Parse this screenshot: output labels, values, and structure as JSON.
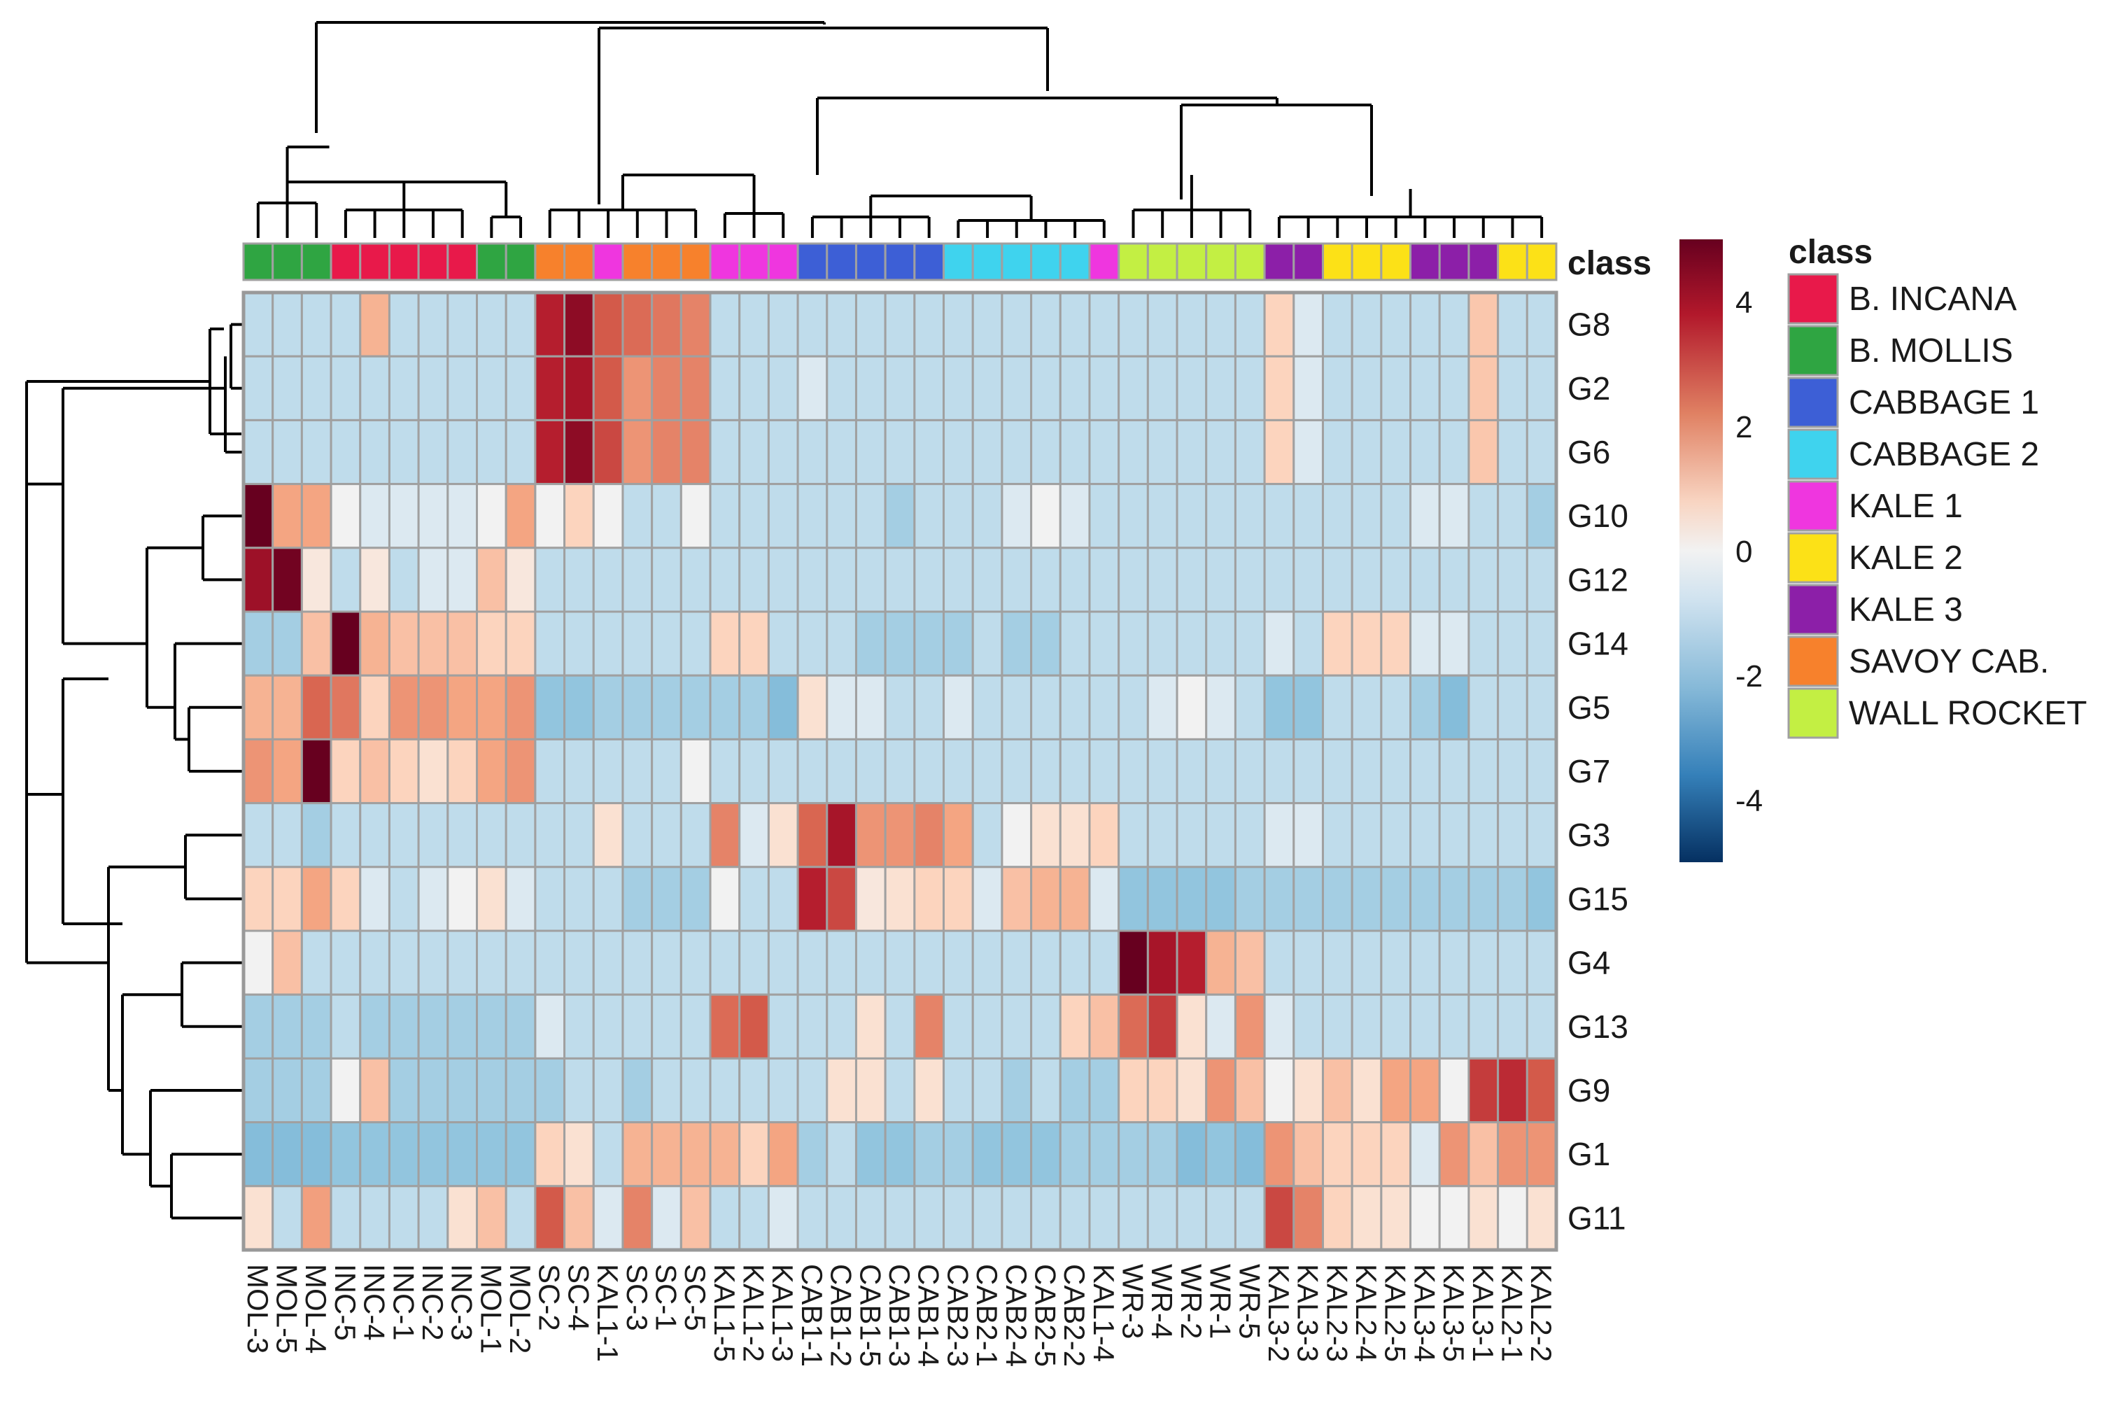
{
  "chart_data": {
    "type": "heatmap",
    "row_dendrogram": true,
    "column_dendrogram": true,
    "rows": [
      "G8",
      "G2",
      "G6",
      "G10",
      "G12",
      "G14",
      "G5",
      "G7",
      "G3",
      "G15",
      "G4",
      "G13",
      "G9",
      "G1",
      "G11"
    ],
    "columns": [
      "MOL-3",
      "MOL-5",
      "MOL-4",
      "INC-5",
      "INC-4",
      "INC-1",
      "INC-2",
      "INC-3",
      "MOL-1",
      "MOL-2",
      "SC-2",
      "SC-4",
      "KAL1-1",
      "SC-3",
      "SC-1",
      "SC-5",
      "KAL1-5",
      "KAL1-2",
      "KAL1-3",
      "CAB1-1",
      "CAB1-2",
      "CAB1-5",
      "CAB1-3",
      "CAB1-4",
      "CAB2-3",
      "CAB2-1",
      "CAB2-4",
      "CAB2-5",
      "CAB2-2",
      "KAL1-4",
      "WR-3",
      "WR-4",
      "WR-2",
      "WR-1",
      "WR-5",
      "KAL3-2",
      "KAL3-3",
      "KAL2-3",
      "KAL2-4",
      "KAL2-5",
      "KAL3-4",
      "KAL3-5",
      "KAL3-1",
      "KAL2-1",
      "KAL2-2"
    ],
    "column_classes": [
      "B. MOLLIS",
      "B. MOLLIS",
      "B. MOLLIS",
      "B. INCANA",
      "B. INCANA",
      "B. INCANA",
      "B. INCANA",
      "B. INCANA",
      "B. MOLLIS",
      "B. MOLLIS",
      "SAVOY CAB.",
      "SAVOY CAB.",
      "KALE 1",
      "SAVOY CAB.",
      "SAVOY CAB.",
      "SAVOY CAB.",
      "KALE 1",
      "KALE 1",
      "KALE 1",
      "CABBAGE 1",
      "CABBAGE 1",
      "CABBAGE 1",
      "CABBAGE 1",
      "CABBAGE 1",
      "CABBAGE 2",
      "CABBAGE 2",
      "CABBAGE 2",
      "CABBAGE 2",
      "CABBAGE 2",
      "KALE 1",
      "WALL ROCKET",
      "WALL ROCKET",
      "WALL ROCKET",
      "WALL ROCKET",
      "WALL ROCKET",
      "KALE 3",
      "KALE 3",
      "KALE 2",
      "KALE 2",
      "KALE 2",
      "KALE 3",
      "KALE 3",
      "KALE 3",
      "KALE 2",
      "KALE 2"
    ],
    "values": [
      [
        -0.5,
        -0.5,
        -0.5,
        -0.5,
        1,
        -0.5,
        -0.5,
        -0.5,
        -0.5,
        -0.5,
        3.5,
        4.3,
        2.5,
        2.2,
        2,
        1.8,
        -0.5,
        -0.5,
        -0.5,
        -0.5,
        -0.5,
        -0.5,
        -0.5,
        -0.5,
        -0.5,
        -0.5,
        -0.5,
        -0.5,
        -0.5,
        -0.5,
        -0.5,
        -0.5,
        -0.5,
        -0.5,
        -0.5,
        0.5,
        -0.2,
        -0.5,
        -0.5,
        -0.5,
        -0.5,
        -0.5,
        0.7,
        -0.5,
        -0.5
      ],
      [
        -0.5,
        -0.5,
        -0.5,
        -0.5,
        -0.5,
        -0.5,
        -0.5,
        -0.5,
        -0.5,
        -0.5,
        3.5,
        3.8,
        2.5,
        1.5,
        1.8,
        1.8,
        -0.5,
        -0.5,
        -0.5,
        -0.2,
        -0.5,
        -0.5,
        -0.5,
        -0.5,
        -0.5,
        -0.5,
        -0.5,
        -0.5,
        -0.5,
        -0.5,
        -0.5,
        -0.5,
        -0.5,
        -0.5,
        -0.5,
        0.5,
        -0.2,
        -0.5,
        -0.5,
        -0.5,
        -0.5,
        -0.5,
        0.7,
        -0.5,
        -0.5
      ],
      [
        -0.5,
        -0.5,
        -0.5,
        -0.5,
        -0.5,
        -0.5,
        -0.5,
        -0.5,
        -0.5,
        -0.5,
        3.5,
        4.3,
        2.8,
        1.5,
        1.8,
        1.8,
        -0.5,
        -0.5,
        -0.5,
        -0.5,
        -0.5,
        -0.5,
        -0.5,
        -0.5,
        -0.5,
        -0.5,
        -0.5,
        -0.5,
        -0.5,
        -0.5,
        -0.5,
        -0.5,
        -0.5,
        -0.5,
        -0.5,
        0.5,
        -0.2,
        -0.5,
        -0.5,
        -0.5,
        -0.5,
        -0.5,
        0.7,
        -0.5,
        -0.5
      ],
      [
        5,
        1.2,
        1.2,
        0,
        -0.2,
        -0.2,
        -0.2,
        -0.2,
        0,
        1.2,
        0,
        0.5,
        0,
        -0.5,
        -0.5,
        0,
        -0.5,
        -0.5,
        -0.5,
        -0.5,
        -0.5,
        -0.5,
        -0.8,
        -0.5,
        -0.5,
        -0.5,
        -0.2,
        0,
        -0.2,
        -0.5,
        -0.5,
        -0.5,
        -0.5,
        -0.5,
        -0.5,
        -0.5,
        -0.5,
        -0.5,
        -0.5,
        -0.5,
        -0.2,
        -0.2,
        -0.5,
        -0.5,
        -0.8
      ],
      [
        4,
        4.8,
        0.2,
        -0.5,
        0.2,
        -0.5,
        -0.2,
        -0.2,
        0.8,
        0.2,
        -0.5,
        -0.5,
        -0.5,
        -0.5,
        -0.5,
        -0.5,
        -0.5,
        -0.5,
        -0.5,
        -0.5,
        -0.5,
        -0.5,
        -0.5,
        -0.5,
        -0.5,
        -0.5,
        -0.5,
        -0.5,
        -0.5,
        -0.5,
        -0.5,
        -0.5,
        -0.5,
        -0.5,
        -0.5,
        -0.5,
        -0.5,
        -0.5,
        -0.5,
        -0.5,
        -0.5,
        -0.5,
        -0.5,
        -0.5,
        -0.5
      ],
      [
        -0.8,
        -0.8,
        0.8,
        5,
        1,
        0.8,
        0.8,
        0.8,
        0.5,
        0.5,
        -0.5,
        -0.5,
        -0.5,
        -0.5,
        -0.5,
        -0.5,
        0.5,
        0.5,
        -0.5,
        -0.5,
        -0.5,
        -0.8,
        -0.8,
        -0.8,
        -0.8,
        -0.5,
        -0.8,
        -0.8,
        -0.5,
        -0.5,
        -0.5,
        -0.5,
        -0.5,
        -0.5,
        -0.5,
        -0.2,
        -0.5,
        0.5,
        0.5,
        0.5,
        -0.2,
        -0.2,
        -0.5,
        -0.5,
        -0.5
      ],
      [
        1,
        1,
        2.3,
        2,
        0.5,
        1.5,
        1.5,
        1.2,
        1.2,
        1.5,
        -1,
        -1,
        -0.8,
        -0.8,
        -0.8,
        -0.8,
        -0.8,
        -0.8,
        -1.2,
        0.3,
        -0.2,
        -0.2,
        -0.5,
        -0.5,
        -0.2,
        -0.5,
        -0.5,
        -0.5,
        -0.5,
        -0.5,
        -0.5,
        -0.2,
        0,
        -0.2,
        -0.5,
        -1,
        -1,
        -0.5,
        -0.5,
        -0.5,
        -0.8,
        -1.2,
        -0.5,
        -0.5,
        -0.5
      ],
      [
        1.5,
        1.2,
        5,
        0.5,
        0.8,
        0.5,
        0.3,
        0.5,
        1.2,
        1.5,
        -0.5,
        -0.5,
        -0.5,
        -0.5,
        -0.5,
        0,
        -0.5,
        -0.5,
        -0.5,
        -0.5,
        -0.5,
        -0.5,
        -0.5,
        -0.5,
        -0.5,
        -0.5,
        -0.5,
        -0.5,
        -0.5,
        -0.5,
        -0.5,
        -0.5,
        -0.5,
        -0.5,
        -0.5,
        -0.5,
        -0.5,
        -0.5,
        -0.5,
        -0.5,
        -0.5,
        -0.5,
        -0.5,
        -0.5,
        -0.5
      ],
      [
        -0.5,
        -0.5,
        -0.8,
        -0.5,
        -0.5,
        -0.5,
        -0.5,
        -0.5,
        -0.5,
        -0.5,
        -0.5,
        -0.5,
        0.3,
        -0.5,
        -0.5,
        -0.5,
        1.8,
        -0.2,
        0.3,
        2.3,
        3.8,
        1.5,
        1.5,
        1.8,
        1.2,
        -0.5,
        0,
        0.3,
        0.3,
        0.5,
        -0.5,
        -0.5,
        -0.5,
        -0.5,
        -0.5,
        -0.2,
        -0.2,
        -0.5,
        -0.5,
        -0.5,
        -0.5,
        -0.5,
        -0.5,
        -0.5,
        -0.5
      ],
      [
        0.5,
        0.5,
        1.2,
        0.5,
        -0.2,
        -0.5,
        -0.2,
        0,
        0.3,
        -0.2,
        -0.5,
        -0.5,
        -0.5,
        -0.8,
        -0.8,
        -0.8,
        0,
        -0.5,
        -0.5,
        3.5,
        2.8,
        0.2,
        0.3,
        0.5,
        0.5,
        -0.2,
        0.8,
        1,
        1,
        -0.2,
        -1,
        -1,
        -1,
        -1,
        -0.8,
        -0.8,
        -0.8,
        -0.8,
        -0.8,
        -0.8,
        -0.8,
        -0.8,
        -0.8,
        -0.8,
        -1
      ],
      [
        0,
        0.8,
        -0.5,
        -0.5,
        -0.5,
        -0.5,
        -0.5,
        -0.5,
        -0.5,
        -0.5,
        -0.5,
        -0.5,
        -0.5,
        -0.5,
        -0.5,
        -0.5,
        -0.5,
        -0.5,
        -0.5,
        -0.5,
        -0.5,
        -0.5,
        -0.5,
        -0.5,
        -0.5,
        -0.5,
        -0.5,
        -0.5,
        -0.5,
        -0.5,
        5,
        3.8,
        3.5,
        1,
        0.8,
        -0.5,
        -0.5,
        -0.5,
        -0.5,
        -0.5,
        -0.5,
        -0.5,
        -0.5,
        -0.5,
        -0.5
      ],
      [
        -0.8,
        -0.8,
        -0.8,
        -0.5,
        -0.8,
        -0.8,
        -0.8,
        -0.8,
        -0.8,
        -0.8,
        -0.2,
        -0.5,
        -0.5,
        -0.5,
        -0.5,
        -0.5,
        2.2,
        2.5,
        -0.5,
        -0.5,
        -0.5,
        0.3,
        -0.5,
        1.8,
        -0.5,
        -0.5,
        -0.5,
        -0.5,
        0.5,
        0.8,
        2.2,
        3,
        0.3,
        -0.2,
        1.5,
        -0.2,
        -0.5,
        -0.5,
        -0.5,
        -0.5,
        -0.5,
        -0.5,
        -0.5,
        -0.5,
        -0.5
      ],
      [
        -0.8,
        -0.8,
        -0.8,
        0,
        0.8,
        -0.8,
        -0.8,
        -0.8,
        -0.8,
        -0.8,
        -0.8,
        -0.5,
        -0.5,
        -0.8,
        -0.5,
        -0.5,
        -0.5,
        -0.5,
        -0.5,
        -0.5,
        0.3,
        0.3,
        -0.5,
        0.3,
        -0.5,
        -0.5,
        -0.8,
        -0.5,
        -0.8,
        -0.8,
        0.5,
        0.5,
        0.3,
        1.5,
        0.8,
        0,
        0.3,
        0.8,
        0.3,
        1.2,
        1.2,
        0,
        3,
        3.3,
        2.5
      ],
      [
        -1.2,
        -1.2,
        -1.2,
        -1,
        -1,
        -1,
        -1,
        -1,
        -1,
        -1,
        0.5,
        0.3,
        -0.5,
        1,
        1,
        1,
        1,
        0.5,
        1.2,
        -0.8,
        -0.5,
        -1,
        -1,
        -0.8,
        -0.8,
        -1,
        -1,
        -1,
        -0.8,
        -0.8,
        -0.8,
        -0.8,
        -1.2,
        -1,
        -1.2,
        1.5,
        0.8,
        0.5,
        0.5,
        0.5,
        -0.2,
        1.5,
        0.8,
        1.5,
        1.5
      ],
      [
        0.3,
        -0.5,
        1.3,
        -0.5,
        -0.5,
        -0.5,
        -0.5,
        0.3,
        0.8,
        -0.5,
        2.5,
        0.8,
        -0.2,
        1.8,
        -0.2,
        0.8,
        -0.5,
        -0.5,
        -0.2,
        -0.5,
        -0.5,
        -0.5,
        -0.5,
        -0.5,
        -0.5,
        -0.5,
        -0.5,
        -0.5,
        -0.5,
        -0.5,
        -0.5,
        -0.5,
        -0.5,
        -0.5,
        -0.5,
        2.8,
        1.8,
        0.5,
        0.3,
        0.3,
        0,
        0,
        0.3,
        0,
        0.3
      ]
    ],
    "color_scale": {
      "min": -5,
      "max": 5,
      "ticks": [
        4,
        2,
        0,
        -2,
        -4
      ],
      "low": "#053061",
      "mid": "#f2f2f2",
      "high": "#67001f"
    },
    "legend": {
      "title": "class",
      "entries": [
        {
          "name": "B. INCANA",
          "color": "#e8194a"
        },
        {
          "name": "B. MOLLIS",
          "color": "#2fa542"
        },
        {
          "name": "CABBAGE 1",
          "color": "#3d5fd6"
        },
        {
          "name": "CABBAGE 2",
          "color": "#3fd3ee"
        },
        {
          "name": "KALE 1",
          "color": "#ef36df"
        },
        {
          "name": "KALE 2",
          "color": "#fce117"
        },
        {
          "name": "KALE 3",
          "color": "#8c1fa8"
        },
        {
          "name": "SAVOY CAB.",
          "color": "#f7812c"
        },
        {
          "name": "WALL ROCKET",
          "color": "#c3ef43"
        }
      ]
    },
    "annotation_label": "class"
  }
}
